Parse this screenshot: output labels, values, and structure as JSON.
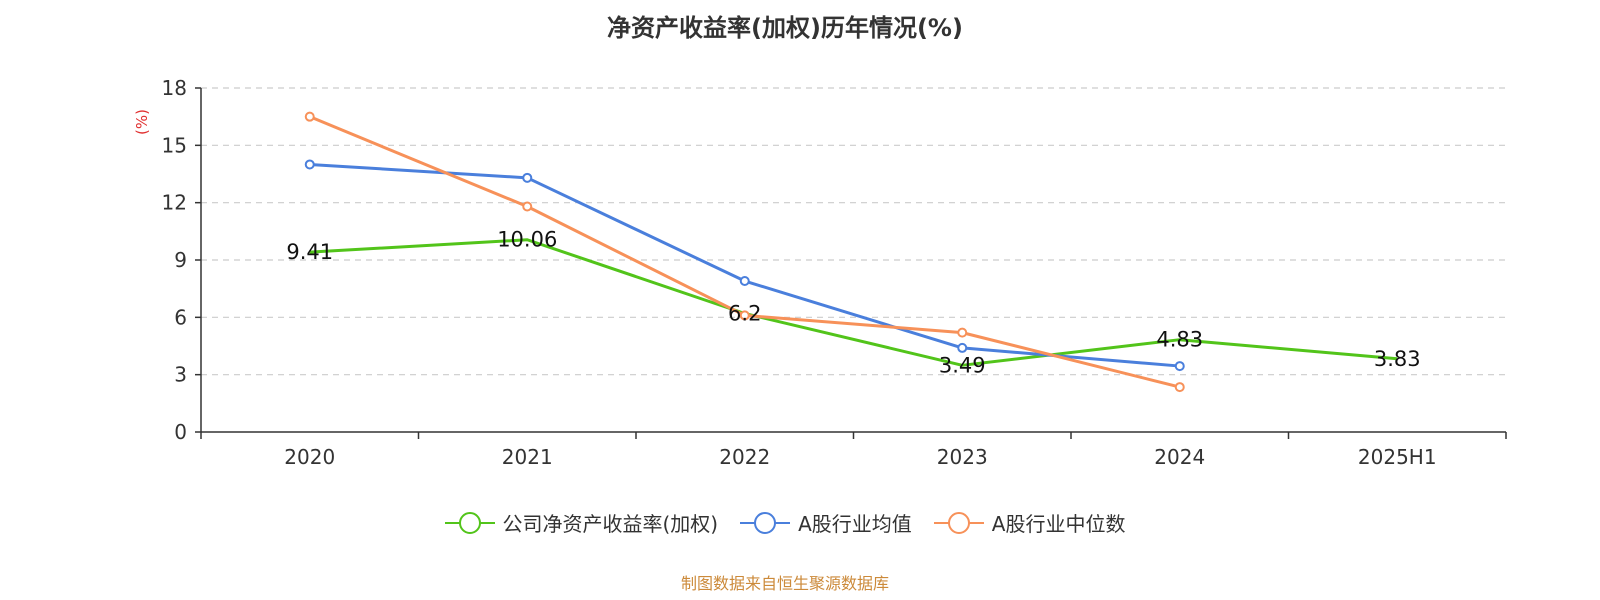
{
  "chart_data": {
    "type": "line",
    "title": "净资产收益率(加权)历年情况(%)",
    "ylabel": "(%)",
    "xlabel": "",
    "categories": [
      "2020",
      "2021",
      "2022",
      "2023",
      "2024",
      "2025H1"
    ],
    "ylim": [
      0,
      18
    ],
    "yticks": [
      0,
      3,
      6,
      9,
      12,
      15,
      18
    ],
    "grid": true,
    "legend_position": "bottom",
    "series": [
      {
        "name": "公司净资产收益率(加权)",
        "color": "#52c41a",
        "values": [
          9.41,
          10.06,
          6.2,
          3.49,
          4.83,
          3.83
        ],
        "labels": [
          "9.41",
          "10.06",
          "6.2",
          "3.49",
          "4.83",
          "3.83"
        ]
      },
      {
        "name": "A股行业均值",
        "color": "#4a7fdc",
        "values": [
          14.0,
          13.3,
          7.9,
          4.4,
          3.45,
          null
        ],
        "labels": []
      },
      {
        "name": "A股行业中位数",
        "color": "#f79159",
        "values": [
          16.5,
          11.8,
          6.1,
          5.2,
          2.35,
          null
        ],
        "labels": []
      }
    ],
    "source": "制图数据来自恒生聚源数据库"
  }
}
